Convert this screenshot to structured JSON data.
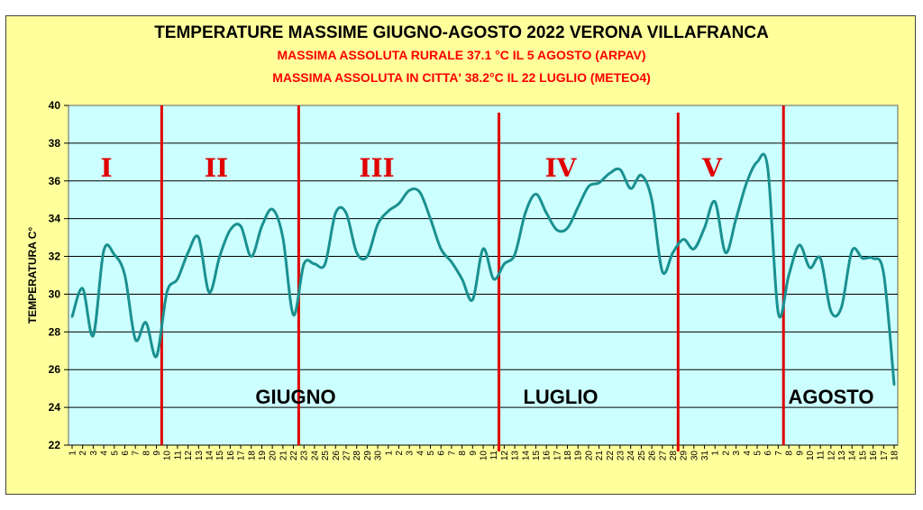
{
  "colors": {
    "background": "#ffff9c",
    "plot_area": "#ccffff",
    "line": "#1a9090",
    "dividers": "#e00000",
    "subtitle": "#ff0000"
  },
  "chart_data": {
    "type": "line",
    "title": "TEMPERATURE MASSIME GIUGNO-AGOSTO 2022 VERONA VILLAFRANCA",
    "subtitles": [
      "MASSIMA ASSOLUTA RURALE 37.1 °C IL 5 AGOSTO (ARPAV)",
      "MASSIMA ASSOLUTA IN CITTA' 38.2°C IL 22 LUGLIO (METEO4)"
    ],
    "xlabel": "",
    "ylabel": "TEMPERATURA C°",
    "ylim": [
      22,
      40
    ],
    "yticks": [
      22,
      24,
      26,
      28,
      30,
      32,
      34,
      36,
      38,
      40
    ],
    "grid": true,
    "x": [
      "1",
      "2",
      "3",
      "4",
      "5",
      "6",
      "7",
      "8",
      "9",
      "10",
      "11",
      "12",
      "13",
      "14",
      "15",
      "16",
      "17",
      "18",
      "19",
      "20",
      "21",
      "22",
      "23",
      "24",
      "25",
      "26",
      "27",
      "28",
      "29",
      "30",
      "1",
      "2",
      "3",
      "4",
      "5",
      "6",
      "7",
      "8",
      "9",
      "10",
      "11",
      "12",
      "13",
      "14",
      "15",
      "16",
      "17",
      "18",
      "19",
      "20",
      "21",
      "22",
      "23",
      "24",
      "25",
      "26",
      "27",
      "28",
      "29",
      "30",
      "31",
      "1",
      "2",
      "3",
      "4",
      "5",
      "6",
      "7",
      "8",
      "9",
      "10",
      "11",
      "12",
      "13",
      "14",
      "15",
      "16",
      "17",
      "18"
    ],
    "series": [
      {
        "values": [
          28.8,
          30.3,
          27.8,
          32.3,
          32.1,
          31.0,
          27.6,
          28.5,
          26.7,
          30.1,
          30.8,
          32.2,
          33.0,
          30.1,
          32.0,
          33.4,
          33.6,
          32.0,
          33.6,
          34.5,
          33.0,
          28.9,
          31.6,
          31.6,
          31.6,
          34.3,
          34.3,
          32.2,
          32.0,
          33.7,
          34.4,
          34.8,
          35.5,
          35.4,
          34.0,
          32.4,
          31.7,
          30.8,
          29.7,
          32.4,
          30.8,
          31.6,
          32.1,
          34.3,
          35.3,
          34.3,
          33.4,
          33.5,
          34.6,
          35.7,
          35.9,
          36.4,
          36.6,
          35.6,
          36.3,
          35.0,
          31.2,
          32.2,
          32.9,
          32.4,
          33.5,
          34.9,
          32.2,
          34.0,
          35.9,
          37.0,
          36.7,
          29.0,
          31.0,
          32.6,
          31.4,
          31.9,
          29.1,
          29.3,
          32.3,
          31.9,
          31.9,
          31.1,
          25.2
        ]
      }
    ],
    "period_labels": [
      "I",
      "II",
      "III",
      "IV",
      "V"
    ],
    "month_labels": [
      "GIUGNO",
      "LUGLIO",
      "AGOSTO"
    ]
  }
}
